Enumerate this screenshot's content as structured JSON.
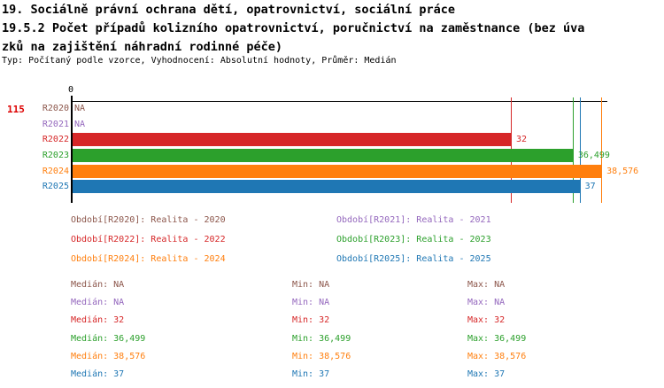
{
  "header": {
    "title_lines": [
      "19. Sociálně právní ochrana dětí, opatrovnictví, sociální práce",
      "19.5.2 Počet případů kolizního opatrovnictví, poručnictví na zaměstnance (bez úva",
      "zků na zajištění náhradní rodinné péče)"
    ],
    "meta": "Typ: Počítaný podle vzorce, Vyhodnocení: Absolutní hodnoty, Průměr: Medián",
    "indicator_id": "115"
  },
  "chart_data": {
    "type": "bar",
    "orientation": "horizontal",
    "title": "19.5.2 Počet případů kolizního opatrovnictví, poručnictví na zaměstnance (bez úvazků na zajištění náhradní rodinné péče)",
    "categories": [
      "R2020",
      "R2021",
      "R2022",
      "R2023",
      "R2024",
      "R2025"
    ],
    "values": [
      null,
      null,
      32,
      36.499,
      38.576,
      37
    ],
    "value_labels": [
      "NA",
      "NA",
      "32",
      "36,499",
      "38,576",
      "37"
    ],
    "colors": [
      "#8c564b",
      "#9467bd",
      "#d62728",
      "#2ca02c",
      "#ff7f0e",
      "#1f77b4"
    ],
    "x_tick_labels": [
      "0"
    ],
    "xlim": [
      0,
      39
    ],
    "grid": false,
    "reference_lines": [
      {
        "value": 32,
        "color": "#d62728"
      },
      {
        "value": 36.499,
        "color": "#2ca02c"
      },
      {
        "value": 37,
        "color": "#1f77b4"
      },
      {
        "value": 38.576,
        "color": "#ff7f0e"
      }
    ]
  },
  "legend": {
    "items": [
      {
        "label": "Období[R2020]: Realita - 2020"
      },
      {
        "label": "Období[R2021]: Realita - 2021"
      },
      {
        "label": "Období[R2022]: Realita - 2022"
      },
      {
        "label": "Období[R2023]: Realita - 2023"
      },
      {
        "label": "Období[R2024]: Realita - 2024"
      },
      {
        "label": "Období[R2025]: Realita - 2025"
      }
    ]
  },
  "stats": {
    "rows": [
      {
        "median": "Medián: NA",
        "min": "Min: NA",
        "max": "Max: NA"
      },
      {
        "median": "Medián: NA",
        "min": "Min: NA",
        "max": "Max: NA"
      },
      {
        "median": "Medián: 32",
        "min": "Min: 32",
        "max": "Max: 32"
      },
      {
        "median": "Medián: 36,499",
        "min": "Min: 36,499",
        "max": "Max: 36,499"
      },
      {
        "median": "Medián: 38,576",
        "min": "Min: 38,576",
        "max": "Max: 38,576"
      },
      {
        "median": "Medián: 37",
        "min": "Min: 37",
        "max": "Max: 37"
      }
    ]
  },
  "colors": {
    "indicator_id": "#dd0000",
    "axis": "#000000",
    "title_text": "#000000"
  }
}
